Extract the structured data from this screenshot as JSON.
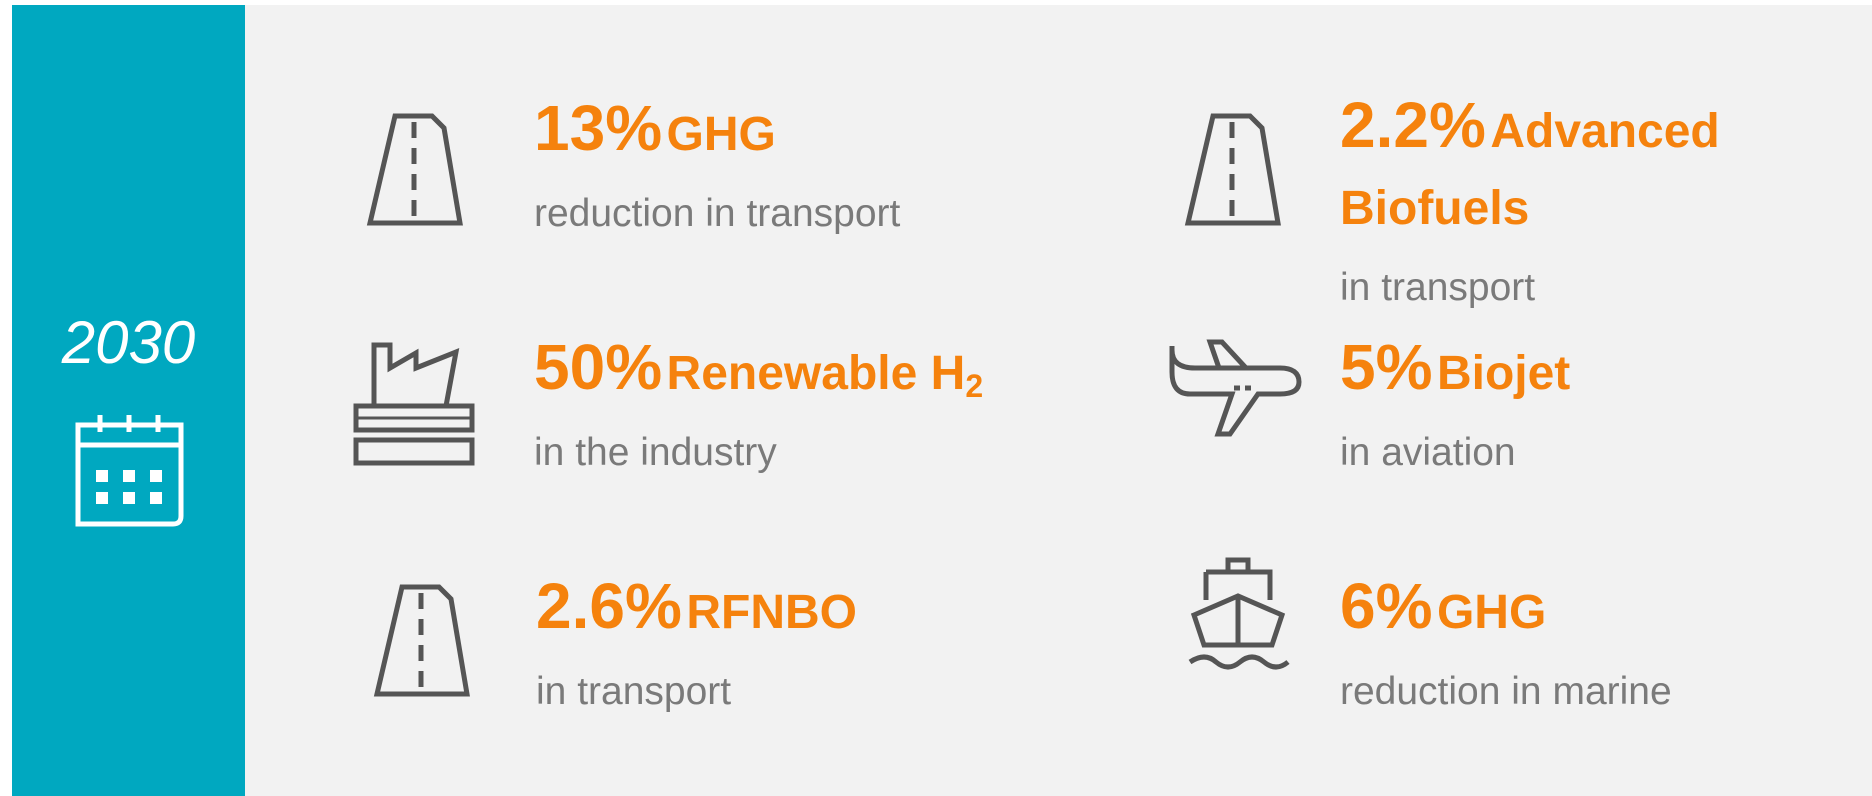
{
  "sidebar": {
    "year": "2030"
  },
  "items": [
    {
      "value": "13%",
      "label": "GHG",
      "description": "reduction in transport"
    },
    {
      "value": "2.2%",
      "label": "Advanced Biofuels",
      "description": "in transport"
    },
    {
      "value": "50%",
      "label": "Renewable H",
      "subscript": "2",
      "description": "in the industry"
    },
    {
      "value": "5%",
      "label": "Biojet",
      "description": "in aviation"
    },
    {
      "value": "2.6%",
      "label": "RFNBO",
      "description": "in transport"
    },
    {
      "value": "6%",
      "label": "GHG",
      "description": "reduction in marine"
    }
  ]
}
